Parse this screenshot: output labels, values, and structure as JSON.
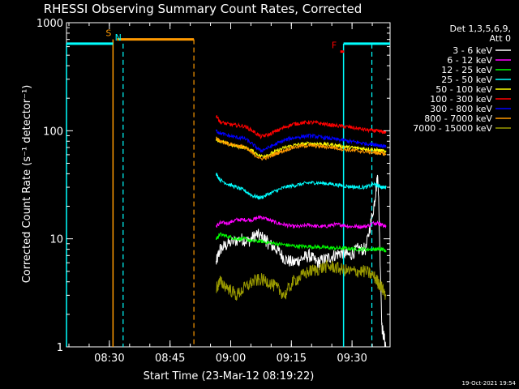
{
  "chart_data": {
    "type": "line",
    "title": "RHESSI Observing Summary Count Rates, Corrected",
    "xlabel": "Start Time (23-Mar-12 08:19:22)",
    "ylabel": "Corrected Count Rate (s⁻¹ detector⁻¹)",
    "yscale": "log",
    "xlim_minutes": [
      0,
      80
    ],
    "ylim": [
      1,
      1000
    ],
    "x_ticks": [
      {
        "label": "08:30",
        "minute": 10.6
      },
      {
        "label": "08:45",
        "minute": 25.6
      },
      {
        "label": "09:00",
        "minute": 40.6
      },
      {
        "label": "09:15",
        "minute": 55.6
      },
      {
        "label": "09:30",
        "minute": 70.6
      },
      {
        "label": "09:45",
        "minute": 85.6
      }
    ],
    "y_ticks": [
      {
        "label": "1",
        "value": 1
      },
      {
        "label": "10",
        "value": 10
      },
      {
        "label": "100",
        "value": 100
      },
      {
        "label": "1000",
        "value": 1000
      }
    ],
    "legend_header": [
      "Det 1,3,5,6,9,",
      "Att 0"
    ],
    "legend_position": "right",
    "series": [
      {
        "name": "3 - 6 keV",
        "color": "#ffffff",
        "points": [
          [
            37,
            6
          ],
          [
            38,
            8
          ],
          [
            40,
            9
          ],
          [
            43,
            10
          ],
          [
            45,
            9.5
          ],
          [
            47,
            11
          ],
          [
            49,
            10
          ],
          [
            50,
            9
          ],
          [
            52,
            8
          ],
          [
            54,
            6.5
          ],
          [
            56,
            6
          ],
          [
            58,
            6.5
          ],
          [
            60,
            7
          ],
          [
            62,
            6
          ],
          [
            64,
            6.5
          ],
          [
            66,
            7
          ],
          [
            68,
            7.5
          ],
          [
            70,
            7
          ],
          [
            72,
            8
          ],
          [
            74,
            8
          ],
          [
            76,
            20
          ],
          [
            77,
            40
          ],
          [
            78,
            1.5
          ],
          [
            79,
            1
          ]
        ]
      },
      {
        "name": "6 - 12 keV",
        "color": "#ff00ff",
        "points": [
          [
            37,
            13
          ],
          [
            38,
            14
          ],
          [
            40,
            14
          ],
          [
            42,
            15
          ],
          [
            44,
            15
          ],
          [
            46,
            15
          ],
          [
            48,
            16
          ],
          [
            50,
            15
          ],
          [
            52,
            14
          ],
          [
            54,
            13.5
          ],
          [
            56,
            13
          ],
          [
            58,
            13
          ],
          [
            60,
            13.5
          ],
          [
            62,
            13
          ],
          [
            64,
            13
          ],
          [
            66,
            13.5
          ],
          [
            68,
            13.5
          ],
          [
            70,
            13
          ],
          [
            72,
            13
          ],
          [
            74,
            13
          ],
          [
            76,
            14
          ],
          [
            77,
            14
          ],
          [
            78,
            13.5
          ],
          [
            79,
            13
          ]
        ]
      },
      {
        "name": "12 - 25 keV",
        "color": "#00ff00",
        "points": [
          [
            37,
            10
          ],
          [
            38,
            11
          ],
          [
            40,
            10.5
          ],
          [
            42,
            10
          ],
          [
            44,
            10
          ],
          [
            46,
            9.5
          ],
          [
            48,
            9.5
          ],
          [
            50,
            9.2
          ],
          [
            52,
            9
          ],
          [
            54,
            8.8
          ],
          [
            56,
            8.6
          ],
          [
            58,
            8.5
          ],
          [
            60,
            8.5
          ],
          [
            62,
            8.4
          ],
          [
            64,
            8.3
          ],
          [
            66,
            8.2
          ],
          [
            68,
            8.2
          ],
          [
            70,
            8.1
          ],
          [
            72,
            8
          ],
          [
            74,
            8
          ],
          [
            76,
            8
          ],
          [
            77,
            8
          ],
          [
            78,
            8
          ],
          [
            79,
            7.8
          ]
        ]
      },
      {
        "name": "25 - 50 keV",
        "color": "#00ffff",
        "points": [
          [
            37,
            40
          ],
          [
            38,
            35
          ],
          [
            40,
            32
          ],
          [
            42,
            30
          ],
          [
            44,
            28
          ],
          [
            46,
            25
          ],
          [
            48,
            24
          ],
          [
            50,
            26
          ],
          [
            52,
            28
          ],
          [
            54,
            30
          ],
          [
            56,
            31
          ],
          [
            58,
            32
          ],
          [
            60,
            33
          ],
          [
            62,
            33
          ],
          [
            64,
            32.5
          ],
          [
            66,
            32
          ],
          [
            68,
            31
          ],
          [
            70,
            30.5
          ],
          [
            72,
            30
          ],
          [
            74,
            30
          ],
          [
            76,
            32
          ],
          [
            77,
            31
          ],
          [
            78,
            30
          ],
          [
            79,
            30
          ]
        ]
      },
      {
        "name": "50 - 100 keV",
        "color": "#ffff00",
        "points": [
          [
            37,
            85
          ],
          [
            38,
            80
          ],
          [
            40,
            75
          ],
          [
            42,
            72
          ],
          [
            44,
            70
          ],
          [
            46,
            65
          ],
          [
            48,
            58
          ],
          [
            50,
            60
          ],
          [
            52,
            65
          ],
          [
            54,
            70
          ],
          [
            56,
            73
          ],
          [
            58,
            75
          ],
          [
            60,
            76
          ],
          [
            62,
            76
          ],
          [
            64,
            75
          ],
          [
            66,
            74
          ],
          [
            68,
            72
          ],
          [
            70,
            70
          ],
          [
            72,
            69
          ],
          [
            74,
            68
          ],
          [
            76,
            67
          ],
          [
            77,
            66
          ],
          [
            78,
            65
          ],
          [
            79,
            64
          ]
        ]
      },
      {
        "name": "100 - 300 keV",
        "color": "#ff0000",
        "points": [
          [
            37,
            140
          ],
          [
            38,
            120
          ],
          [
            40,
            115
          ],
          [
            42,
            112
          ],
          [
            44,
            110
          ],
          [
            46,
            100
          ],
          [
            48,
            88
          ],
          [
            50,
            92
          ],
          [
            52,
            100
          ],
          [
            54,
            108
          ],
          [
            56,
            115
          ],
          [
            58,
            118
          ],
          [
            60,
            120
          ],
          [
            62,
            118
          ],
          [
            64,
            115
          ],
          [
            66,
            112
          ],
          [
            68,
            110
          ],
          [
            70,
            108
          ],
          [
            72,
            105
          ],
          [
            74,
            102
          ],
          [
            76,
            100
          ],
          [
            77,
            99
          ],
          [
            78,
            98
          ],
          [
            79,
            96
          ]
        ]
      },
      {
        "name": "300 - 800 keV",
        "color": "#0000ff",
        "points": [
          [
            37,
            100
          ],
          [
            38,
            95
          ],
          [
            40,
            90
          ],
          [
            42,
            87
          ],
          [
            44,
            85
          ],
          [
            46,
            75
          ],
          [
            48,
            65
          ],
          [
            50,
            70
          ],
          [
            52,
            76
          ],
          [
            54,
            82
          ],
          [
            56,
            86
          ],
          [
            58,
            88
          ],
          [
            60,
            90
          ],
          [
            62,
            88
          ],
          [
            64,
            86
          ],
          [
            66,
            84
          ],
          [
            68,
            82
          ],
          [
            70,
            80
          ],
          [
            72,
            78
          ],
          [
            74,
            76
          ],
          [
            76,
            75
          ],
          [
            77,
            74
          ],
          [
            78,
            72
          ],
          [
            79,
            71
          ]
        ]
      },
      {
        "name": "800 - 7000 keV",
        "color": "#ff9900",
        "points": [
          [
            37,
            85
          ],
          [
            38,
            80
          ],
          [
            40,
            76
          ],
          [
            42,
            73
          ],
          [
            44,
            70
          ],
          [
            46,
            62
          ],
          [
            48,
            55
          ],
          [
            50,
            57
          ],
          [
            52,
            62
          ],
          [
            54,
            66
          ],
          [
            56,
            70
          ],
          [
            58,
            72
          ],
          [
            60,
            73
          ],
          [
            62,
            72
          ],
          [
            64,
            71
          ],
          [
            66,
            70
          ],
          [
            68,
            68
          ],
          [
            70,
            66
          ],
          [
            72,
            65
          ],
          [
            74,
            64
          ],
          [
            76,
            63
          ],
          [
            77,
            62
          ],
          [
            78,
            62
          ],
          [
            79,
            60
          ]
        ]
      },
      {
        "name": "7000 - 15000 keV",
        "color": "#999900",
        "points": [
          [
            37,
            3.5
          ],
          [
            38,
            4
          ],
          [
            40,
            3.5
          ],
          [
            42,
            3
          ],
          [
            44,
            3.5
          ],
          [
            46,
            4
          ],
          [
            48,
            4.2
          ],
          [
            50,
            4
          ],
          [
            52,
            3.5
          ],
          [
            54,
            3
          ],
          [
            56,
            4
          ],
          [
            58,
            4.5
          ],
          [
            60,
            5
          ],
          [
            62,
            5.2
          ],
          [
            64,
            5.5
          ],
          [
            66,
            5.5
          ],
          [
            68,
            5.2
          ],
          [
            70,
            5
          ],
          [
            72,
            5
          ],
          [
            74,
            5
          ],
          [
            76,
            4.5
          ],
          [
            77,
            4
          ],
          [
            78,
            3.5
          ],
          [
            79,
            3
          ]
        ]
      }
    ],
    "flags": [
      {
        "letter": "S",
        "color": "#ff9900",
        "bar_from_minute": 12.5,
        "bar_to_minute": 31.5,
        "flag_minute": 11.5,
        "line_minutes": [
          11.5
        ],
        "dashed_minutes": [
          31.5
        ],
        "level": 700
      },
      {
        "letter": "N",
        "color": "#00ffff",
        "bar_from_minute": 0,
        "bar_to_minute": 11.5,
        "flag_minute": 14,
        "line_minutes": [
          0
        ],
        "dashed_minutes": [
          14
        ],
        "level": 640
      },
      {
        "letter": "N",
        "color": "#00ffff",
        "bar_from_minute": 68.5,
        "bar_to_minute": 80,
        "flag_minute": null,
        "line_minutes": [
          68.5
        ],
        "dashed_minutes": [
          75.5
        ],
        "level": 640
      },
      {
        "letter": "F",
        "color": "#ff0000",
        "bar_from_minute": 67.7,
        "bar_to_minute": 68.6,
        "flag_minute": 67.2,
        "line_minutes": [],
        "dashed_minutes": [],
        "level": 540
      }
    ],
    "footer_date": "19-Oct-2021 19:54"
  }
}
